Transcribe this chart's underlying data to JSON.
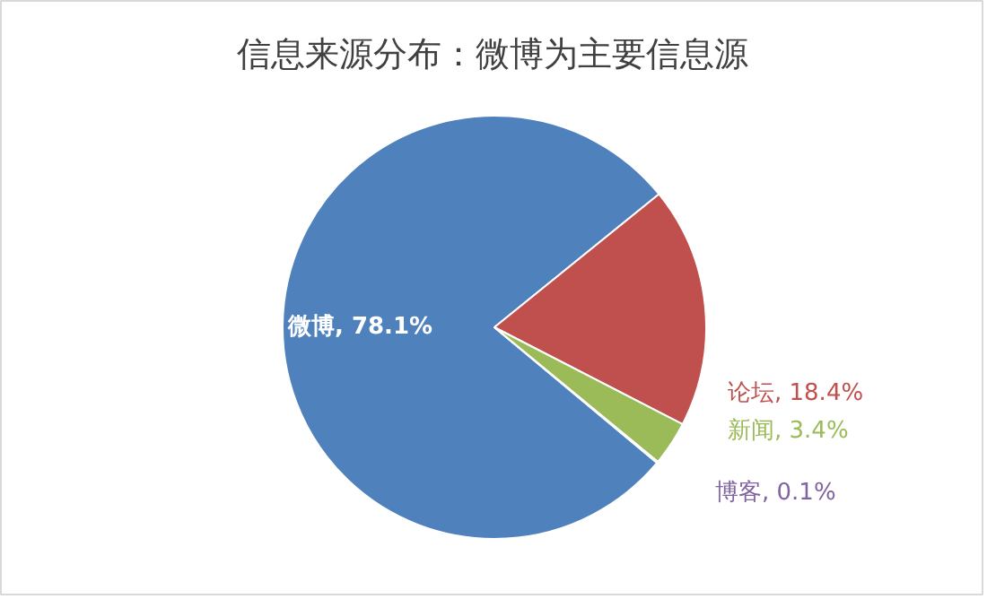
{
  "chart_data": {
    "type": "pie",
    "title": "信息来源分布：微博为主要信息源",
    "categories": [
      "微博",
      "论坛",
      "新闻",
      "博客"
    ],
    "values": [
      78.1,
      18.4,
      3.4,
      0.1
    ],
    "colors": [
      "#4f81bd",
      "#c0504d",
      "#9bbb59",
      "#8064a2"
    ],
    "value_labels": [
      ", 78.1%",
      ", 18.4%",
      ", 3.4%",
      ", 0.1%"
    ],
    "legend": false
  }
}
